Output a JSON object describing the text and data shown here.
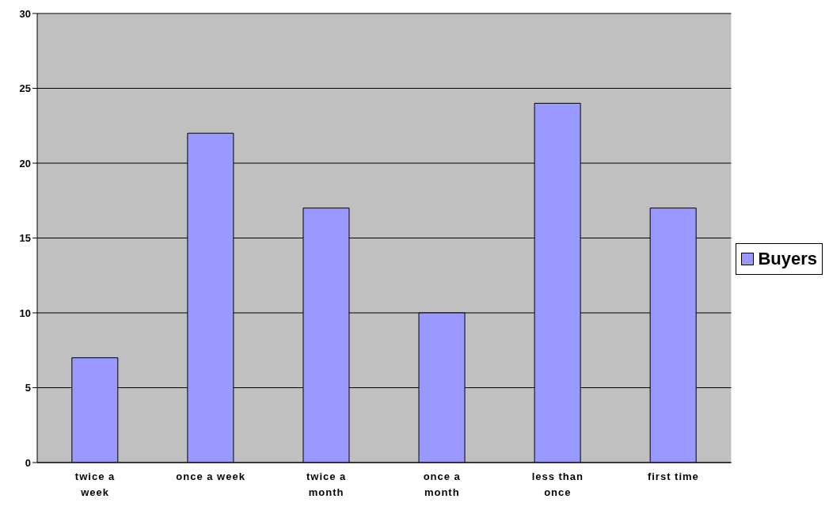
{
  "chart_data": {
    "type": "bar",
    "categories": [
      "twice a week",
      "once a week",
      "twice a month",
      "once a month",
      "less than once",
      "first time"
    ],
    "series": [
      {
        "name": "Buyers",
        "color": "#9999ff",
        "values": [
          7,
          22,
          17,
          10,
          24,
          17
        ]
      }
    ],
    "ylim": [
      0,
      30
    ],
    "yticks": [
      0,
      5,
      10,
      15,
      20,
      25,
      30
    ],
    "grid": "y",
    "legend": "right"
  }
}
